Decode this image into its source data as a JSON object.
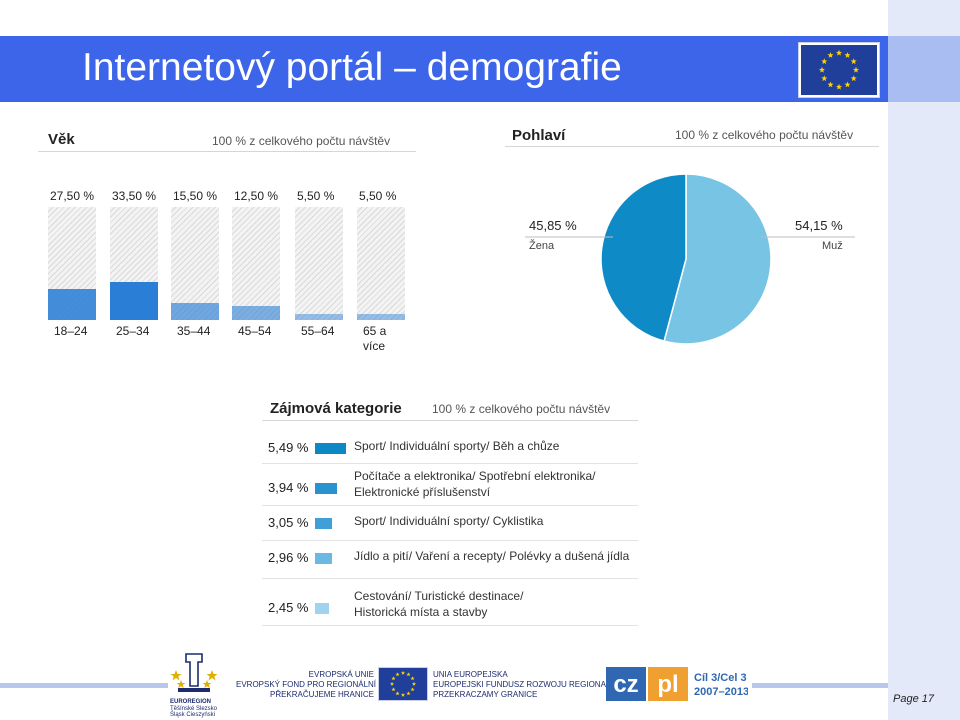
{
  "slide": {
    "title": "Internetový portál – demografie",
    "page_label": "Page 17",
    "colors": {
      "title_bar": "#3c65e9",
      "age_bar": "#2a7ed6",
      "pie_dark": "#0e8bc6",
      "pie_light": "#78c4e4"
    }
  },
  "footer": {
    "euroregion_name": "EUROREGION",
    "euroregion_sub1": "Těšínské Slezsko",
    "euroregion_sub2": "Śląsk Cieszyński",
    "cz_fund_lines": [
      "EVROPSKÁ UNIE",
      "EVROPSKÝ FOND PRO REGIONÁLNÍ ROZVOJ",
      "PŘEKRAČUJEME HRANICE"
    ],
    "pl_fund_lines": [
      "UNIA EUROPEJSKA",
      "EUROPEJSKI FUNDUSZ ROZWOJU REGIONALNEGO",
      "PRZEKRACZAMY GRANICE"
    ],
    "czpl_cz": "cz",
    "czpl_pl": "pl",
    "czpl_goal_line1": "Cíl 3/Cel 3",
    "czpl_goal_line2": "2007–2013"
  },
  "chart_data": [
    {
      "type": "bar",
      "title": "Věk",
      "note": "100 % z celkového počtu návštěv",
      "categories": [
        "18–24",
        "25–34",
        "35–44",
        "45–54",
        "55–64",
        "65 a více"
      ],
      "value_labels": [
        "27,50 %",
        "33,50 %",
        "15,50 %",
        "12,50 %",
        "5,50 %",
        "5,50 %"
      ],
      "values": [
        27.5,
        33.5,
        15.5,
        12.5,
        5.5,
        5.5
      ],
      "ylim": [
        0,
        100
      ]
    },
    {
      "type": "pie",
      "title": "Pohlaví",
      "note": "100 % z celkového počtu návštěv",
      "slices": [
        {
          "label": "Žena",
          "value": 45.85,
          "value_label": "45,85 %",
          "color": "#0e8bc6"
        },
        {
          "label": "Muž",
          "value": 54.15,
          "value_label": "54,15 %",
          "color": "#78c4e4"
        }
      ]
    },
    {
      "type": "bar",
      "title": "Zájmová kategorie",
      "note": "100 % z celkového počtu návštěv",
      "rows": [
        {
          "value": 5.49,
          "value_label": "5,49 %",
          "color": "#0e87c5",
          "label_lines": [
            "Sport/ Individuální sporty/ Běh a chůze"
          ]
        },
        {
          "value": 3.94,
          "value_label": "3,94 %",
          "color": "#2a92cf",
          "label_lines": [
            "Počítače a elektronika/ Spotřební elektronika/",
            "Elektronické příslušenství"
          ]
        },
        {
          "value": 3.05,
          "value_label": "3,05 %",
          "color": "#3f9fd6",
          "label_lines": [
            "Sport/ Individuální sporty/ Cyklistika"
          ]
        },
        {
          "value": 2.96,
          "value_label": "2,96 %",
          "color": "#6bb8e2",
          "label_lines": [
            "Jídlo a pití/ Vaření a recepty/ Polévky a dušená jídla"
          ]
        },
        {
          "value": 2.45,
          "value_label": "2,45 %",
          "color": "#9fd3ef",
          "label_lines": [
            "Cestování/ Turistické destinace/",
            "Historická místa a stavby"
          ]
        }
      ]
    }
  ]
}
